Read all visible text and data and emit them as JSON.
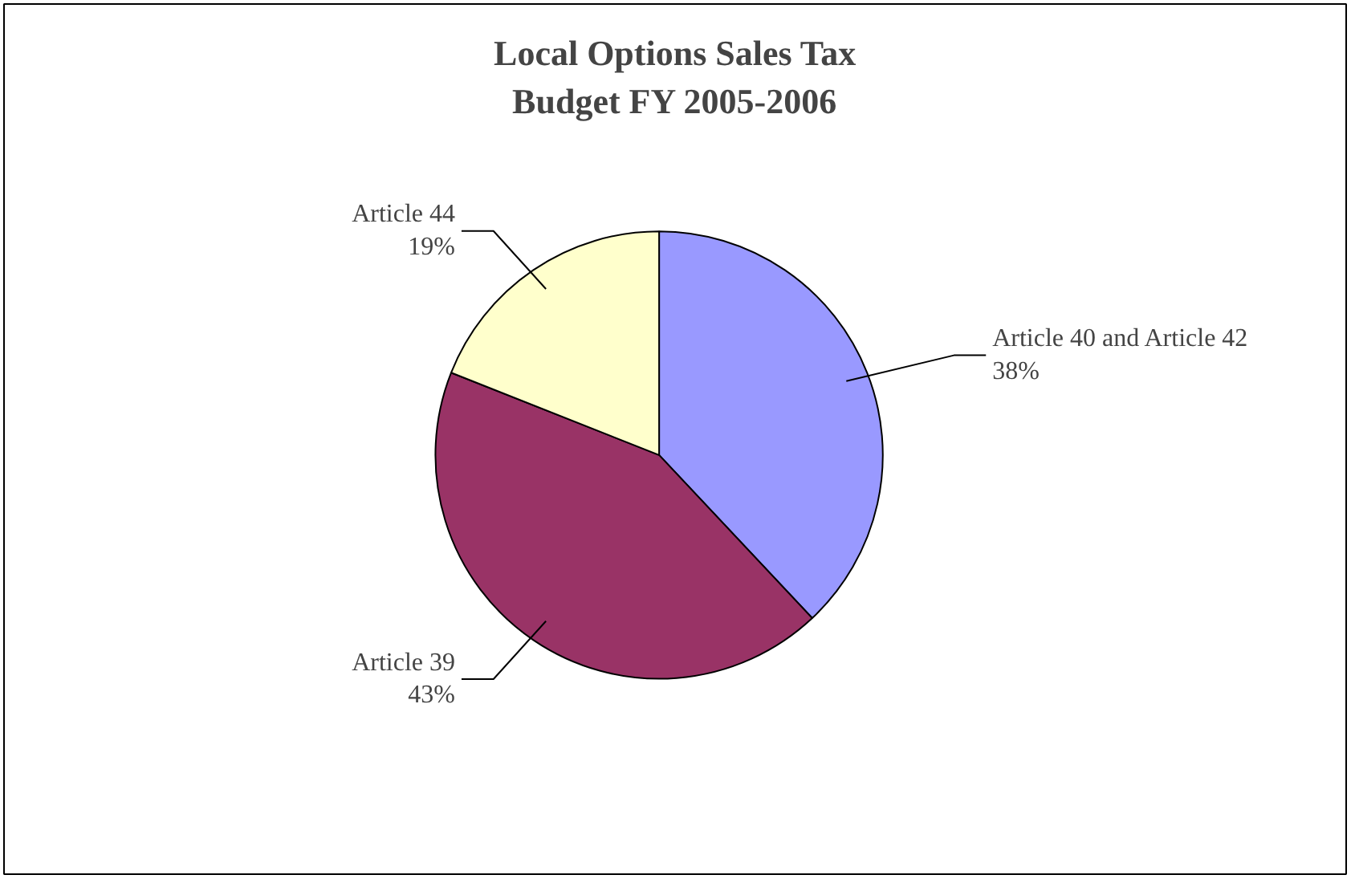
{
  "chart_data": {
    "type": "pie",
    "title": "Local Options Sales Tax\nBudget FY 2005-2006",
    "categories": [
      "Article 40 and Article 42",
      "Article 39",
      "Article 44"
    ],
    "values": [
      38,
      43,
      19
    ],
    "colors": [
      "#9999ff",
      "#993366",
      "#ffffcc"
    ],
    "value_labels": [
      "38%",
      "43%",
      "19%"
    ]
  }
}
